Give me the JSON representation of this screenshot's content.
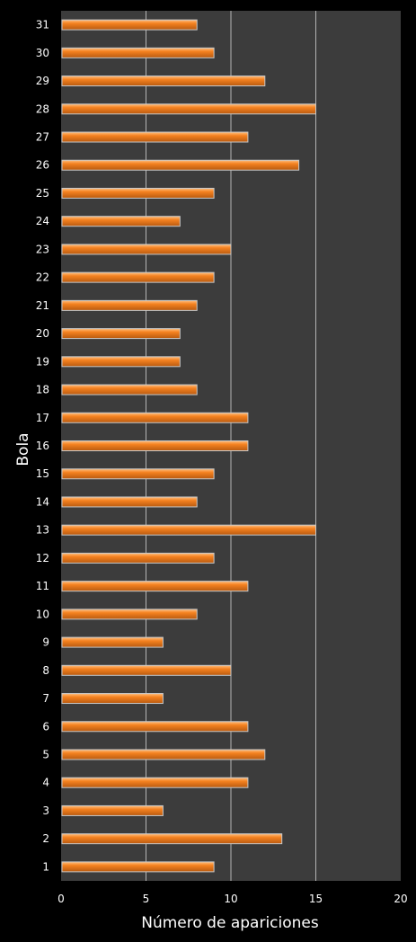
{
  "chart_data": {
    "type": "bar",
    "orientation": "horizontal",
    "categories": [
      "1",
      "2",
      "3",
      "4",
      "5",
      "6",
      "7",
      "8",
      "9",
      "10",
      "11",
      "12",
      "13",
      "14",
      "15",
      "16",
      "17",
      "18",
      "19",
      "20",
      "21",
      "22",
      "23",
      "24",
      "25",
      "26",
      "27",
      "28",
      "29",
      "30",
      "31"
    ],
    "values": [
      9,
      13,
      6,
      11,
      12,
      11,
      6,
      10,
      6,
      8,
      11,
      9,
      15,
      8,
      9,
      11,
      11,
      8,
      7,
      7,
      8,
      9,
      10,
      7,
      9,
      14,
      11,
      15,
      12,
      9,
      8
    ],
    "xlabel": "Número de apariciones",
    "ylabel": "Bola",
    "xlim": [
      0,
      20
    ],
    "xticks": [
      "0",
      "5",
      "10",
      "15",
      "20"
    ],
    "grid": true,
    "legend": "none",
    "colors": {
      "background": "#000000",
      "plot_area": "#3c3c3c",
      "gridline": "#b4b4b4",
      "bar_light": "#ffbf80",
      "bar_mid": "#f58220",
      "bar_dark": "#b85a10",
      "text": "#ffffff"
    }
  }
}
